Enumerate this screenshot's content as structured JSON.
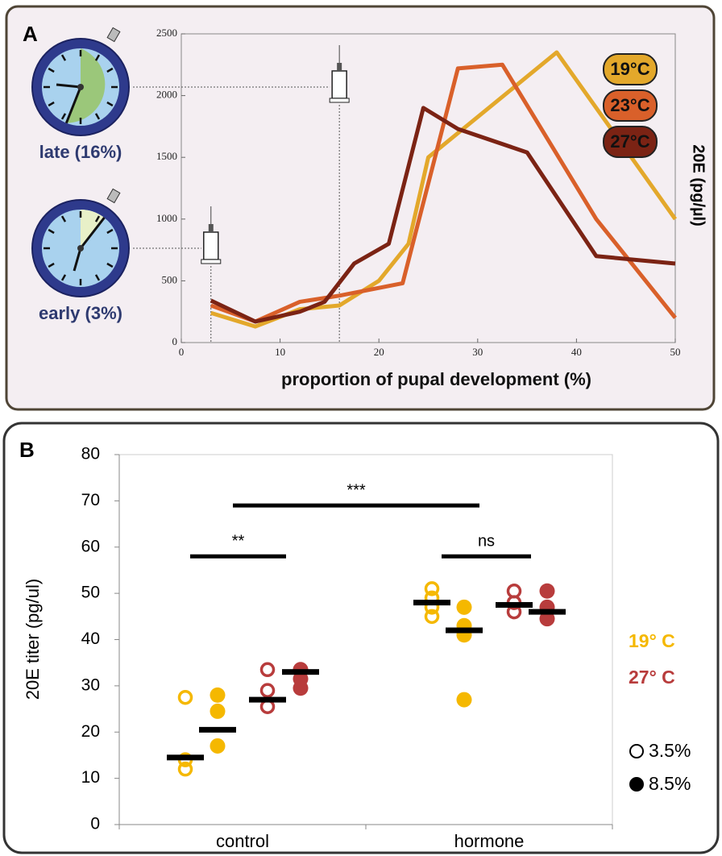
{
  "chart_data": [
    {
      "type": "line",
      "panel": "A",
      "xlabel": "proportion of pupal development (%)",
      "ylabel": "20E (pg/µl)",
      "xlim": [
        0,
        50
      ],
      "ylim": [
        0,
        2500
      ],
      "xticks": [
        0,
        10,
        20,
        30,
        40,
        50
      ],
      "yticks": [
        0,
        500,
        1000,
        1500,
        2000,
        2500
      ],
      "series": [
        {
          "name": "19°C",
          "color": "#e3a82b",
          "x": [
            3,
            7.5,
            12,
            16,
            20,
            23,
            25,
            38,
            50
          ],
          "values": [
            240,
            130,
            270,
            300,
            500,
            800,
            1500,
            2350,
            1000
          ]
        },
        {
          "name": "23°C",
          "color": "#d9602a",
          "x": [
            3,
            7.5,
            12,
            16,
            22.4,
            28,
            32.5,
            42,
            50
          ],
          "values": [
            300,
            170,
            330,
            380,
            480,
            2220,
            2250,
            1000,
            200
          ]
        },
        {
          "name": "27°C",
          "color": "#7b2314",
          "x": [
            3,
            7.5,
            12,
            14.5,
            17.5,
            21,
            24.5,
            28,
            35,
            42,
            50
          ],
          "values": [
            340,
            170,
            250,
            330,
            640,
            800,
            1900,
            1730,
            1540,
            700,
            640
          ]
        }
      ],
      "annotations": [
        {
          "x": 16,
          "label": "late (16%)"
        },
        {
          "x": 3,
          "label": "early (3%)"
        }
      ]
    },
    {
      "type": "strip",
      "panel": "B",
      "ylabel": "20E titer (pg/ul)",
      "categories": [
        "control",
        "hormone"
      ],
      "ylim": [
        0,
        80
      ],
      "yticks": [
        0,
        10,
        20,
        30,
        40,
        50,
        60,
        70,
        80
      ],
      "stages": [
        {
          "name": "3.5%",
          "marker": "open"
        },
        {
          "name": "8.5%",
          "marker": "filled"
        }
      ],
      "series": [
        {
          "name": "19° C",
          "color": "#f5b800",
          "points": [
            [
              [
                27.5,
                14,
                12
              ],
              [
                51,
                49,
                47,
                45
              ]
            ],
            [
              [
                28,
                24.5,
                17
              ],
              [
                47,
                43,
                41,
                27
              ]
            ]
          ],
          "means": [
            [
              14.5,
              48
            ],
            [
              20.5,
              42
            ]
          ]
        },
        {
          "name": "27° C",
          "color": "#b83c3c",
          "points": [
            [
              [
                33.5,
                29,
                25.5
              ],
              [
                50.5,
                48,
                46
              ]
            ],
            [
              [
                33.5,
                31.5,
                29.5
              ],
              [
                50.5,
                47,
                44.5
              ]
            ]
          ],
          "means": [
            [
              27,
              47.5
            ],
            [
              33,
              46
            ]
          ]
        }
      ],
      "brackets": [
        {
          "label": "**",
          "y": 58
        },
        {
          "label": "***",
          "y": 69
        },
        {
          "label": "ns",
          "y": 58
        }
      ]
    }
  ]
}
